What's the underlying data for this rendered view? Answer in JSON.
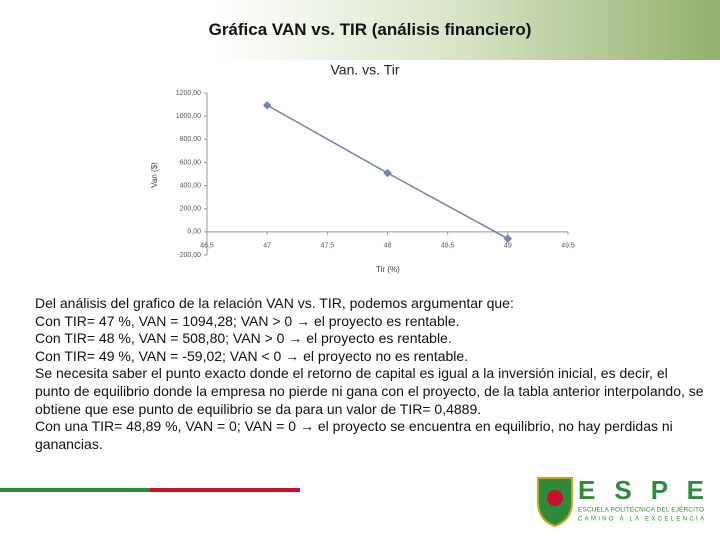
{
  "header": {
    "title": "Gráfica VAN vs. TIR (análisis financiero)"
  },
  "chart_data": {
    "type": "line",
    "title": "Van. vs. Tir",
    "x_label": "Tir (%)",
    "y_label": "Van ($)",
    "x": [
      47,
      48,
      49
    ],
    "values": [
      1094.28,
      508.8,
      -59.02
    ],
    "color": "#7482b0",
    "xlim": [
      46.5,
      49.5
    ],
    "xticks": [
      {
        "value": 46.5,
        "label": "46,5"
      },
      47,
      {
        "value": 47.5,
        "label": "47,5"
      },
      48,
      {
        "value": 48.5,
        "label": "48,5"
      },
      49,
      {
        "value": 49.5,
        "label": "49,5"
      }
    ],
    "ylim": [
      -200,
      1200
    ],
    "yticks": [
      {
        "value": -200,
        "label": "-200,00"
      },
      {
        "value": 0,
        "label": "0,00"
      },
      {
        "value": 200,
        "label": "200,00"
      },
      {
        "value": 400,
        "label": "400,00"
      },
      {
        "value": 600,
        "label": "600,00"
      },
      {
        "value": 800,
        "label": "800,00"
      },
      {
        "value": 1000,
        "label": "1000,00"
      },
      {
        "value": 1200,
        "label": "1200,00"
      }
    ],
    "grid": false
  },
  "body": {
    "lines": [
      "Del análisis del grafico de  la relación  VAN vs. TIR, podemos argumentar que:",
      "Con TIR= 47 %, VAN = 1094,28; VAN > 0 → el proyecto es rentable.",
      "Con TIR= 48 %, VAN = 508,80; VAN > 0 → el proyecto es rentable.",
      "Con TIR= 49 %, VAN = -59,02; VAN < 0 → el proyecto no es rentable.",
      "Se necesita saber el punto exacto donde el retorno de capital es igual a la inversión inicial, es decir, el punto de equilibrio donde la empresa no pierde ni gana con el proyecto, de la tabla anterior interpolando, se obtiene que ese punto de equilibrio se da para un valor de TIR= 0,4889.",
      "Con una TIR= 48,89 %, VAN = 0; VAN = 0 → el proyecto se encuentra en equilibrio, no hay perdidas ni ganancias."
    ]
  },
  "logo": {
    "name": "E S P E",
    "line1": "ESCUELA POLITÉCNICA DEL EJÉRCITO",
    "line2": "CAMINO A LA EXCELENCIA"
  }
}
